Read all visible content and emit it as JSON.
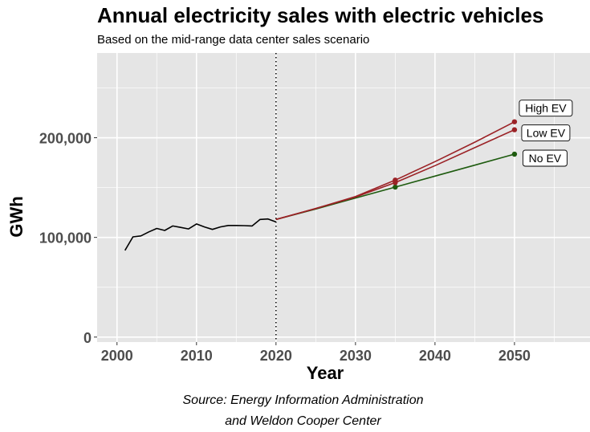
{
  "title": "Annual electricity sales with electric vehicles",
  "subtitle": "Based on the mid-range data center sales scenario",
  "caption_line1": "Source: Energy Information Administration",
  "caption_line2": "and Weldon Cooper Center",
  "chart_data": {
    "type": "line",
    "title": "Annual electricity sales with electric vehicles",
    "subtitle": "Based on the mid-range data center sales scenario",
    "xlabel": "Year",
    "ylabel": "GWh",
    "xlim": [
      1997.5,
      2059.5
    ],
    "ylim": [
      -5000,
      285000
    ],
    "x_ticks": [
      2000,
      2010,
      2020,
      2030,
      2040,
      2050
    ],
    "x_tick_labels": [
      "2000",
      "2010",
      "2020",
      "2030",
      "2040",
      "2050"
    ],
    "y_ticks": [
      0,
      100000,
      200000
    ],
    "y_tick_labels": [
      "0",
      "100,000",
      "200,000"
    ],
    "grid": true,
    "vline": 2020,
    "colors": {
      "historical": "#000000",
      "high_ev": "#9b2226",
      "low_ev": "#9b2226",
      "no_ev": "#1e5b0f",
      "panel": "#e5e5e5",
      "grid": "#ffffff"
    },
    "series": [
      {
        "key": "historical",
        "x": [
          2001,
          2002,
          2003,
          2004,
          2005,
          2006,
          2007,
          2008,
          2009,
          2010,
          2011,
          2012,
          2013,
          2014,
          2015,
          2016,
          2017,
          2018,
          2019,
          2020
        ],
        "y": [
          87000,
          100500,
          101500,
          105500,
          109000,
          107000,
          111500,
          110000,
          108500,
          113500,
          110500,
          108000,
          110500,
          112000,
          112000,
          111800,
          111500,
          118000,
          118500,
          115500
        ]
      },
      {
        "key": "high_ev",
        "name": "High EV",
        "x": [
          2020,
          2025,
          2030,
          2035,
          2040,
          2045,
          2050
        ],
        "y": [
          118000,
          129000,
          141000,
          157500,
          176000,
          195500,
          216000
        ],
        "markers": [
          2035,
          2050
        ]
      },
      {
        "key": "low_ev",
        "name": "Low EV",
        "x": [
          2020,
          2025,
          2030,
          2035,
          2040,
          2045,
          2050
        ],
        "y": [
          118000,
          129000,
          140500,
          155000,
          172000,
          190000,
          208000
        ],
        "markers": [
          2035,
          2050
        ]
      },
      {
        "key": "no_ev",
        "name": "No EV",
        "x": [
          2020,
          2025,
          2030,
          2035,
          2040,
          2045,
          2050
        ],
        "y": [
          118000,
          128500,
          139500,
          150500,
          161500,
          172500,
          183500
        ],
        "markers": [
          2035,
          2050
        ]
      }
    ]
  }
}
